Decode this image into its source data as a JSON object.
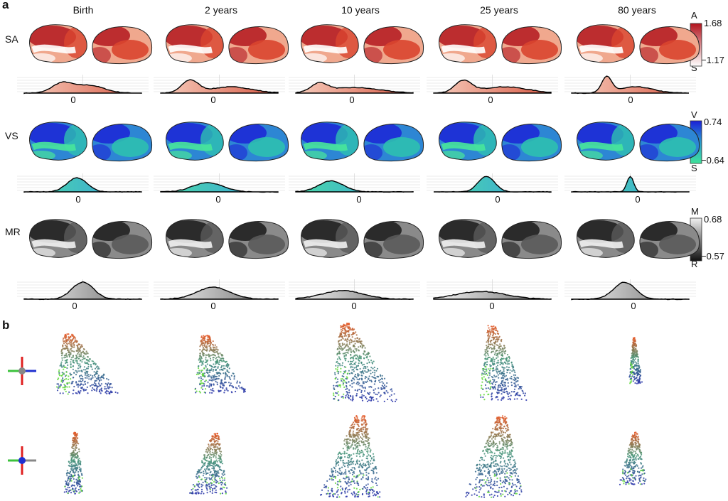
{
  "panel_a": {
    "letter": "a",
    "ages": [
      "Birth",
      "2 years",
      "10 years",
      "25 years",
      "80 years"
    ],
    "rows": [
      {
        "label": "SA",
        "top_letter": "A",
        "bottom_letter": "S",
        "max": "1.68",
        "min": "−1.17",
        "palette": "red",
        "cbar_top": "#b2141e",
        "cbar_bottom": "#ffffff"
      },
      {
        "label": "VS",
        "top_letter": "V",
        "bottom_letter": "S",
        "max": "0.74",
        "min": "−0.64",
        "palette": "blue-green",
        "cbar_top": "#1a20d8",
        "cbar_bottom": "#3fe39a"
      },
      {
        "label": "MR",
        "top_letter": "M",
        "bottom_letter": "R",
        "max": "0.68",
        "min": "−0.57",
        "palette": "gray",
        "cbar_top": "#f2f2f2",
        "cbar_bottom": "#111111"
      }
    ],
    "density_zero_label": "0"
  },
  "panel_b": {
    "letter": "b",
    "orientation_icons": [
      "axes-side-icon",
      "axes-front-icon"
    ]
  }
}
